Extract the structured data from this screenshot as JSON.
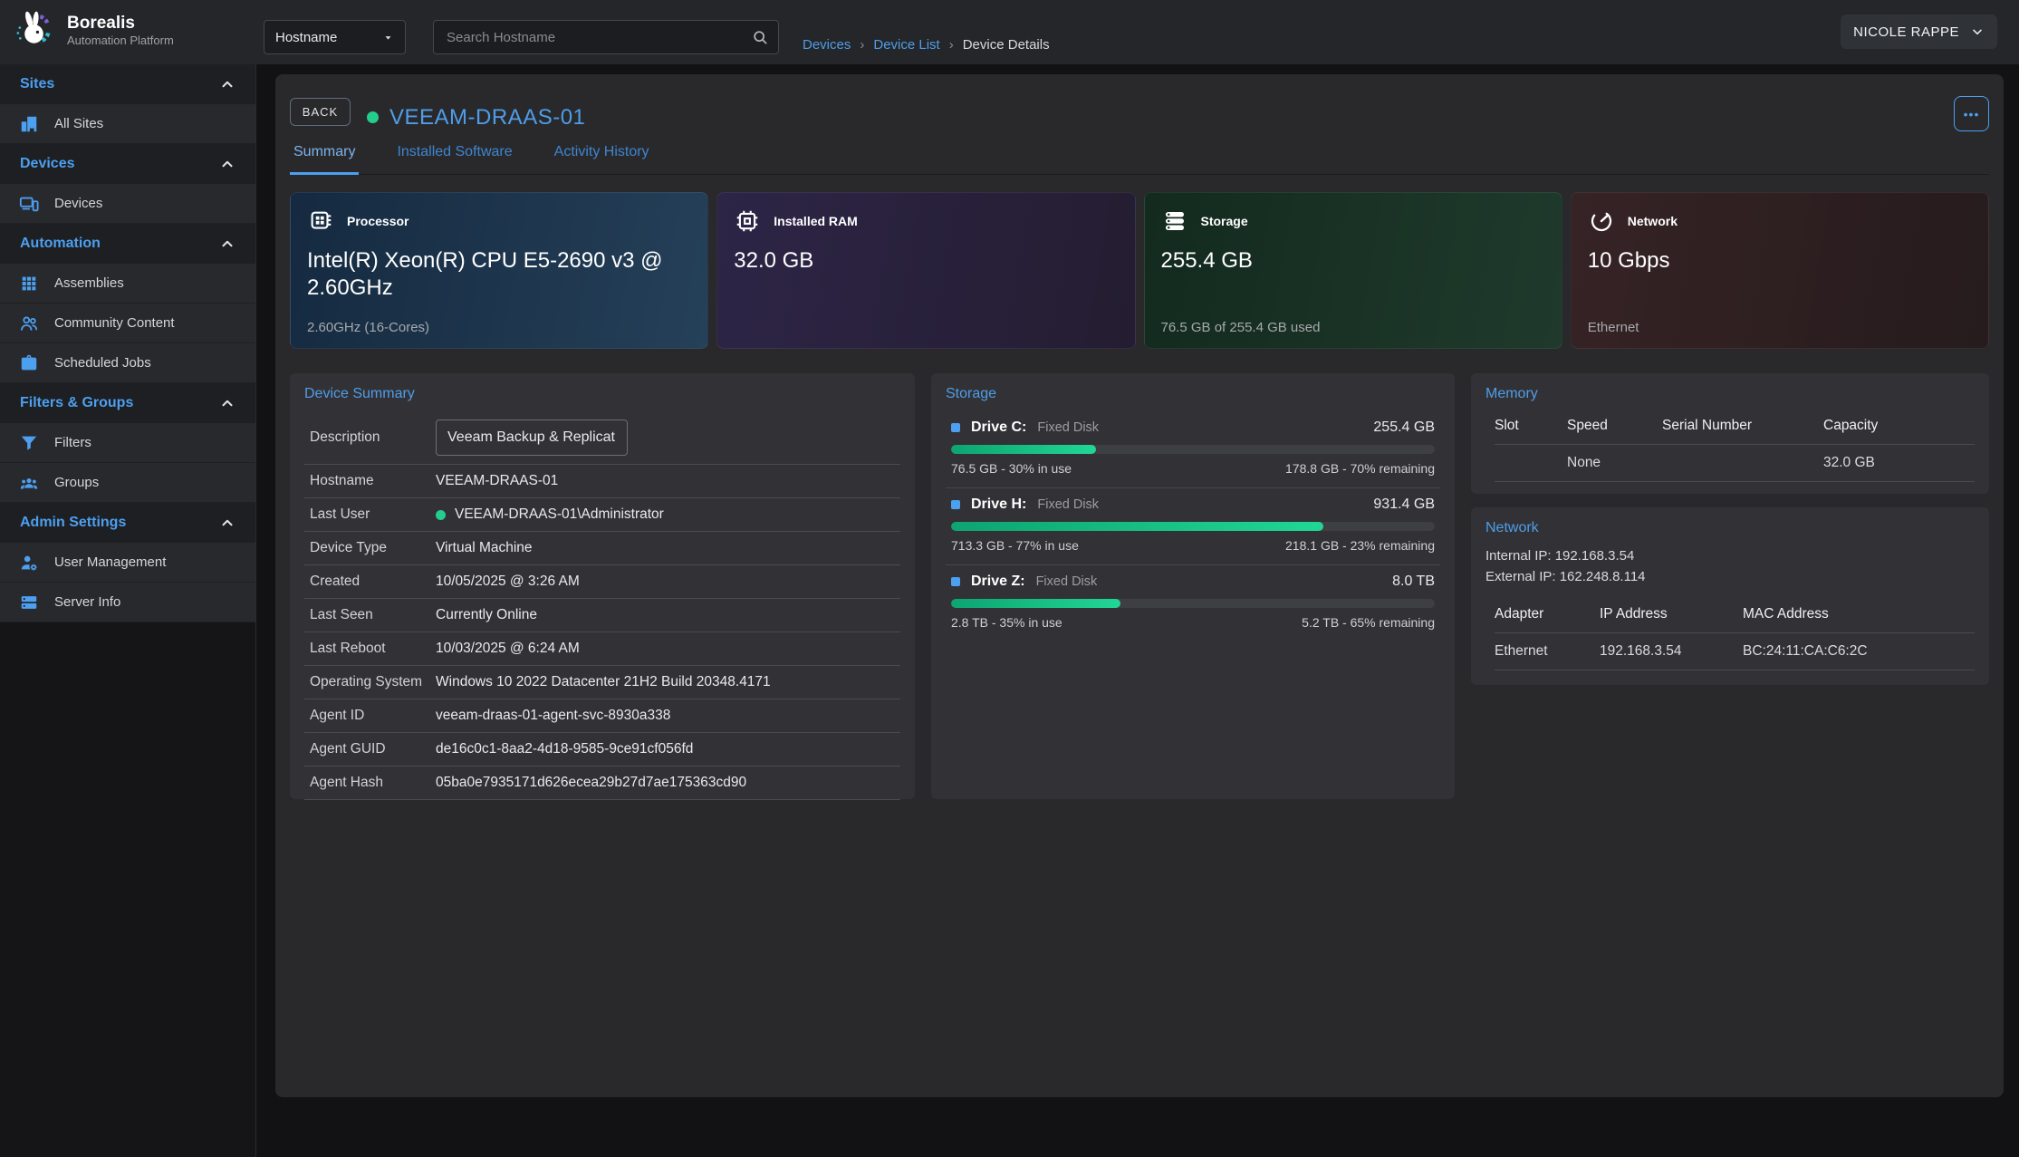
{
  "colors": {
    "accent": "#4d9ff0",
    "link": "#4f9de8",
    "green": "#25cd8d",
    "progress-a": "#0da471",
    "progress-b": "#21d795"
  },
  "icons": {
    "ellipsis_glyph": "•••",
    "crumb_separator": "›"
  },
  "brand": {
    "name": "Borealis",
    "subtitle": "Automation Platform"
  },
  "topbar": {
    "filter_value": "Hostname",
    "search_placeholder": "Search Hostname",
    "breadcrumbs": [
      "Devices",
      "Device List",
      "Device Details"
    ],
    "user_name": "NICOLE RAPPE"
  },
  "sidebar": {
    "sections": [
      {
        "label": "Sites",
        "items": [
          {
            "icon": "buildings-icon",
            "label": "All Sites"
          }
        ]
      },
      {
        "label": "Devices",
        "items": [
          {
            "icon": "devices-icon",
            "label": "Devices"
          }
        ]
      },
      {
        "label": "Automation",
        "items": [
          {
            "icon": "grid-icon",
            "label": "Assemblies"
          },
          {
            "icon": "people-icon",
            "label": "Community Content"
          },
          {
            "icon": "briefcase-icon",
            "label": "Scheduled Jobs"
          }
        ]
      },
      {
        "label": "Filters & Groups",
        "items": [
          {
            "icon": "funnel-icon",
            "label": "Filters"
          },
          {
            "icon": "user-group-icon",
            "label": "Groups"
          }
        ]
      },
      {
        "label": "Admin Settings",
        "items": [
          {
            "icon": "user-gear-icon",
            "label": "User Management"
          },
          {
            "icon": "server-icon",
            "label": "Server Info"
          }
        ]
      }
    ]
  },
  "page": {
    "back_label": "BACK",
    "device_name": "VEEAM-DRAAS-01",
    "status": "online",
    "tabs": [
      "Summary",
      "Installed Software",
      "Activity History"
    ],
    "active_tab": "Summary"
  },
  "stat_cards": [
    {
      "icon": "cpu-icon",
      "label": "Processor",
      "value": "Intel(R) Xeon(R) CPU E5-2690 v3 @ 2.60GHz",
      "subtitle": "2.60GHz (16-Cores)"
    },
    {
      "icon": "ram-icon",
      "label": "Installed RAM",
      "value": "32.0 GB",
      "subtitle": ""
    },
    {
      "icon": "storage-stack-icon",
      "label": "Storage",
      "value": "255.4 GB",
      "subtitle": "76.5 GB of 255.4 GB used"
    },
    {
      "icon": "speedometer-icon",
      "label": "Network",
      "value": "10 Gbps",
      "subtitle": "Ethernet"
    }
  ],
  "device_summary": {
    "title": "Device Summary",
    "rows": [
      {
        "label": "Description",
        "value": "Veeam Backup & Replication"
      },
      {
        "label": "Hostname",
        "value": "VEEAM-DRAAS-01"
      },
      {
        "label": "Last User",
        "value": "VEEAM-DRAAS-01\\Administrator"
      },
      {
        "label": "Device Type",
        "value": "Virtual Machine"
      },
      {
        "label": "Created",
        "value": "10/05/2025 @ 3:26 AM"
      },
      {
        "label": "Last Seen",
        "value": "Currently Online"
      },
      {
        "label": "Last Reboot",
        "value": "10/03/2025 @ 6:24 AM"
      },
      {
        "label": "Operating System",
        "value": "Windows 10 2022 Datacenter 21H2 Build 20348.4171"
      },
      {
        "label": "Agent ID",
        "value": "veeam-draas-01-agent-svc-8930a338"
      },
      {
        "label": "Agent GUID",
        "value": "de16c0c1-8aa2-4d18-9585-9ce91cf056fd"
      },
      {
        "label": "Agent Hash",
        "value": "05ba0e7935171d626ecea29b27d7ae175363cd90"
      }
    ]
  },
  "storage_panel": {
    "title": "Storage",
    "drives": [
      {
        "name": "Drive C:",
        "type": "Fixed Disk",
        "size": "255.4 GB",
        "pct": 30,
        "used": "76.5 GB - 30% in use",
        "remaining": "178.8 GB - 70% remaining"
      },
      {
        "name": "Drive H:",
        "type": "Fixed Disk",
        "size": "931.4 GB",
        "pct": 77,
        "used": "713.3 GB - 77% in use",
        "remaining": "218.1 GB - 23% remaining"
      },
      {
        "name": "Drive Z:",
        "type": "Fixed Disk",
        "size": "8.0 TB",
        "pct": 35,
        "used": "2.8 TB - 35% in use",
        "remaining": "5.2 TB - 65% remaining"
      }
    ]
  },
  "memory_panel": {
    "title": "Memory",
    "headers": [
      "Slot",
      "Speed",
      "Serial Number",
      "Capacity"
    ],
    "rows": [
      [
        "",
        "None",
        "",
        "32.0 GB"
      ]
    ]
  },
  "network_panel": {
    "title": "Network",
    "internal_ip": "Internal IP: 192.168.3.54",
    "external_ip": "External IP: 162.248.8.114",
    "headers": [
      "Adapter",
      "IP Address",
      "MAC Address"
    ],
    "rows": [
      [
        "Ethernet",
        "192.168.3.54",
        "BC:24:11:CA:C6:2C"
      ]
    ]
  }
}
